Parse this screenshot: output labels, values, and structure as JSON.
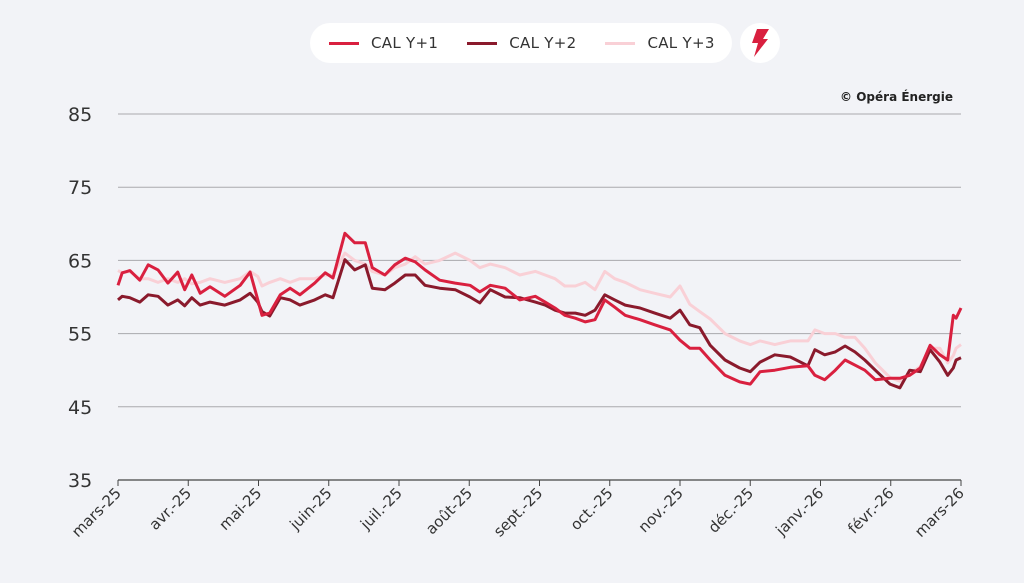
{
  "legend": {
    "items": [
      {
        "label": "CAL Y+1",
        "color": "#d9203f"
      },
      {
        "label": "CAL Y+2",
        "color": "#8a1a2c"
      },
      {
        "label": "CAL Y+3",
        "color": "#f9d0d6"
      }
    ],
    "icon": "lightning-icon"
  },
  "copyright": "© Opéra Énergie",
  "chart_data": {
    "type": "line",
    "title": "",
    "xlabel": "",
    "ylabel": "",
    "ylim": [
      35,
      85
    ],
    "yticks": [
      35,
      45,
      55,
      65,
      75,
      85
    ],
    "grid": true,
    "legend_position": "top-center",
    "xtick_labels": [
      "mars-25",
      "avr.-25",
      "mai-25",
      "juin-25",
      "juil.-25",
      "août-25",
      "sept.-25",
      "oct.-25",
      "nov.-25",
      "déc.-25",
      "janv.-26",
      "févr.-26",
      "mars-26"
    ],
    "x_unit": "months since mars-25",
    "x": [
      0,
      0.06,
      0.17,
      0.31,
      0.43,
      0.57,
      0.71,
      0.85,
      0.95,
      1.05,
      1.17,
      1.31,
      1.52,
      1.74,
      1.88,
      1.99,
      2.05,
      2.16,
      2.31,
      2.45,
      2.59,
      2.8,
      2.95,
      3.06,
      3.23,
      3.37,
      3.52,
      3.62,
      3.8,
      3.94,
      4.09,
      4.23,
      4.37,
      4.58,
      4.8,
      5.01,
      5.15,
      5.3,
      5.51,
      5.72,
      5.94,
      6.08,
      6.22,
      6.36,
      6.51,
      6.65,
      6.79,
      6.93,
      7.07,
      7.22,
      7.43,
      7.64,
      7.86,
      8.0,
      8.14,
      8.28,
      8.43,
      8.64,
      8.85,
      9.0,
      9.14,
      9.35,
      9.57,
      9.82,
      9.92,
      10.06,
      10.21,
      10.35,
      10.49,
      10.63,
      10.78,
      10.99,
      11.13,
      11.27,
      11.42,
      11.56,
      11.7,
      11.81,
      11.89,
      11.93,
      12
    ],
    "series": [
      {
        "name": "CAL Y+1",
        "values": [
          61.6,
          63.3,
          63.6,
          62.3,
          64.4,
          63.7,
          61.9,
          63.4,
          61.0,
          63.0,
          60.5,
          61.4,
          60.1,
          61.6,
          63.4,
          59.6,
          57.5,
          57.8,
          60.3,
          61.2,
          60.3,
          61.9,
          63.3,
          62.6,
          68.7,
          67.4,
          67.4,
          64.0,
          63.0,
          64.4,
          65.3,
          64.8,
          63.7,
          62.3,
          61.9,
          61.6,
          60.7,
          61.6,
          61.2,
          59.6,
          60.1,
          59.3,
          58.5,
          57.5,
          57.1,
          56.6,
          56.9,
          59.6,
          58.6,
          57.5,
          56.9,
          56.2,
          55.5,
          54.1,
          53.0,
          53.0,
          51.4,
          49.3,
          48.4,
          48.1,
          49.8,
          50.0,
          50.4,
          50.6,
          49.3,
          48.7,
          50.0,
          51.4,
          50.7,
          50.0,
          48.7,
          48.9,
          48.9,
          49.3,
          50.3,
          53.4,
          52.1,
          51.4,
          57.5,
          57.1,
          58.5
        ]
      },
      {
        "name": "CAL Y+2",
        "values": [
          59.6,
          60.1,
          59.9,
          59.3,
          60.3,
          60.1,
          58.9,
          59.6,
          58.8,
          59.9,
          58.9,
          59.3,
          58.9,
          59.6,
          60.5,
          59.3,
          58.0,
          57.4,
          59.9,
          59.6,
          58.9,
          59.6,
          60.3,
          59.9,
          65.1,
          63.7,
          64.4,
          61.2,
          61.0,
          61.9,
          63.0,
          63.0,
          61.6,
          61.2,
          61.0,
          60.0,
          59.2,
          61.0,
          60.0,
          59.9,
          59.3,
          58.9,
          58.2,
          57.8,
          57.8,
          57.5,
          58.2,
          60.3,
          59.6,
          58.9,
          58.5,
          57.8,
          57.1,
          58.2,
          56.2,
          55.8,
          53.4,
          51.4,
          50.3,
          49.8,
          51.1,
          52.1,
          51.8,
          50.6,
          52.8,
          52.1,
          52.5,
          53.3,
          52.5,
          51.4,
          50.0,
          48.1,
          47.6,
          50.0,
          49.8,
          52.8,
          51.1,
          49.3,
          50.3,
          51.4,
          51.7
        ]
      },
      {
        "name": "CAL Y+3",
        "values": [
          63.6,
          63.3,
          63.5,
          62.5,
          62.5,
          62.0,
          62.5,
          62.0,
          62.5,
          61.8,
          62.0,
          62.5,
          62.0,
          62.5,
          63.5,
          62.8,
          61.5,
          62.0,
          62.5,
          62.0,
          62.5,
          62.5,
          63.0,
          63.0,
          66.0,
          65.0,
          64.5,
          63.5,
          63.0,
          64.0,
          64.5,
          65.5,
          64.5,
          65.0,
          66.0,
          65.0,
          64.0,
          64.5,
          64.0,
          63.0,
          63.5,
          63.0,
          62.5,
          61.5,
          61.5,
          62.0,
          61.0,
          63.5,
          62.5,
          62.0,
          61.0,
          60.5,
          60.0,
          61.5,
          59.0,
          58.0,
          57.0,
          55.0,
          54.0,
          53.5,
          54.0,
          53.5,
          54.0,
          54.0,
          55.5,
          55.0,
          55.0,
          54.5,
          54.5,
          53.0,
          51.0,
          49.0,
          48.5,
          49.5,
          50.5,
          53.0,
          53.0,
          51.0,
          52.0,
          53.0,
          53.5
        ]
      }
    ]
  }
}
